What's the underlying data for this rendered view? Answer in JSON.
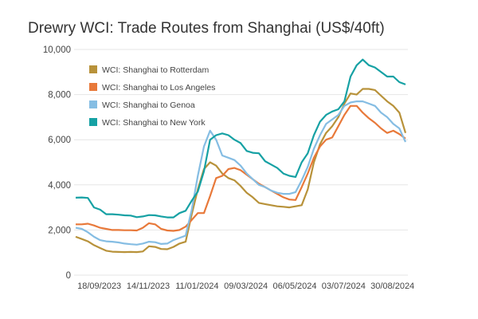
{
  "chart_data": {
    "type": "line",
    "title": "Drewry WCI: Trade Routes from Shanghai (US$/40ft)",
    "xlabel": "",
    "ylabel": "",
    "ylim": [
      0,
      10000
    ],
    "y_ticks": [
      "0",
      "2,000",
      "4,000",
      "6,000",
      "8,000",
      "10,000"
    ],
    "y_tick_values": [
      0,
      2000,
      4000,
      6000,
      8000,
      10000
    ],
    "x_ticks": [
      {
        "label": "18/09/2023",
        "index": 4
      },
      {
        "label": "14/11/2023",
        "index": 12
      },
      {
        "label": "11/01/2024",
        "index": 20
      },
      {
        "label": "09/03/2024",
        "index": 28
      },
      {
        "label": "06/05/2024",
        "index": 36
      },
      {
        "label": "03/07/2024",
        "index": 44
      },
      {
        "label": "30/08/2024",
        "index": 52
      }
    ],
    "frequency": "weekly",
    "grid": true,
    "legend_position": "top-left",
    "series": [
      {
        "name": "WCI: Shanghai to Rotterdam",
        "color": "#b8923a",
        "values": [
          1700,
          1600,
          1500,
          1330,
          1200,
          1080,
          1040,
          1030,
          1020,
          1030,
          1020,
          1050,
          1280,
          1250,
          1160,
          1150,
          1250,
          1400,
          1480,
          2700,
          3800,
          4700,
          5000,
          4850,
          4500,
          4300,
          4200,
          3950,
          3650,
          3450,
          3200,
          3150,
          3100,
          3050,
          3030,
          3000,
          3050,
          3100,
          3800,
          5000,
          5800,
          6300,
          6600,
          7000,
          7600,
          8050,
          8000,
          8250,
          8250,
          8200,
          7950,
          7700,
          7500,
          7200,
          6300
        ]
      },
      {
        "name": "WCI: Shanghai to Los Angeles",
        "color": "#e8793a",
        "values": [
          2250,
          2250,
          2280,
          2200,
          2100,
          2050,
          2000,
          2000,
          1990,
          1990,
          1980,
          2100,
          2300,
          2250,
          2050,
          1980,
          1960,
          2000,
          2150,
          2450,
          2750,
          2750,
          3500,
          4300,
          4400,
          4700,
          4750,
          4650,
          4450,
          4250,
          4050,
          3900,
          3750,
          3600,
          3450,
          3350,
          3330,
          3900,
          4500,
          5200,
          5700,
          6000,
          6100,
          6600,
          7100,
          7500,
          7500,
          7200,
          6950,
          6750,
          6500,
          6300,
          6400,
          6250,
          6050
        ]
      },
      {
        "name": "WCI: Shanghai to Genoa",
        "color": "#85bde3",
        "values": [
          2100,
          2050,
          1900,
          1700,
          1550,
          1500,
          1480,
          1450,
          1400,
          1370,
          1350,
          1400,
          1480,
          1460,
          1380,
          1400,
          1550,
          1650,
          1750,
          2900,
          4400,
          5700,
          6400,
          6000,
          5300,
          5200,
          5100,
          4850,
          4500,
          4250,
          4000,
          3900,
          3750,
          3650,
          3600,
          3600,
          3680,
          4200,
          4800,
          5600,
          6200,
          6700,
          6900,
          7100,
          7500,
          7650,
          7700,
          7700,
          7600,
          7500,
          7200,
          7000,
          6700,
          6500,
          5900
        ]
      },
      {
        "name": "WCI: Shanghai to New York",
        "color": "#16a1a4",
        "values": [
          3430,
          3440,
          3420,
          3000,
          2900,
          2700,
          2700,
          2680,
          2650,
          2640,
          2570,
          2600,
          2660,
          2650,
          2600,
          2560,
          2560,
          2750,
          2850,
          3300,
          3700,
          4600,
          6000,
          6200,
          6280,
          6200,
          6000,
          5850,
          5500,
          5420,
          5400,
          5050,
          4900,
          4750,
          4500,
          4400,
          4350,
          5000,
          5400,
          6200,
          6800,
          7100,
          7250,
          7350,
          7700,
          8800,
          9300,
          9550,
          9300,
          9200,
          9000,
          8800,
          8800,
          8550,
          8450
        ]
      }
    ]
  }
}
